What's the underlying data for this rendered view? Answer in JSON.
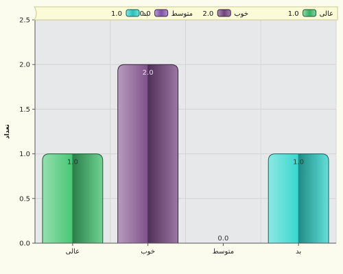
{
  "chart_data": {
    "type": "bar",
    "title": "",
    "xlabel": "",
    "ylabel": "تعداد",
    "ylim": [
      0,
      2.5
    ],
    "yticks": [
      "0.0",
      "0.5",
      "1.0",
      "1.5",
      "2.0",
      "2.5"
    ],
    "grid": true,
    "legend_position": "top",
    "categories": [
      "عالی",
      "خوب",
      "متوسط",
      "بد"
    ],
    "values": [
      1.0,
      2.0,
      0.0,
      1.0
    ],
    "value_labels": [
      "1.0",
      "2.0",
      "0.0",
      "1.0"
    ],
    "colors": [
      "#3fc46e",
      "#7a4a86",
      "#8e5bb5",
      "#2fd6cc"
    ],
    "legend": [
      {
        "name": "عالی",
        "value": "1.0",
        "color": "#3fc46e"
      },
      {
        "name": "خوب",
        "value": "2.0",
        "color": "#7a4a86"
      },
      {
        "name": "متوسط",
        "value": "0.0",
        "color": "#8e5bb5"
      },
      {
        "name": "بد",
        "value": "1.0",
        "color": "#2fd6cc"
      }
    ]
  }
}
